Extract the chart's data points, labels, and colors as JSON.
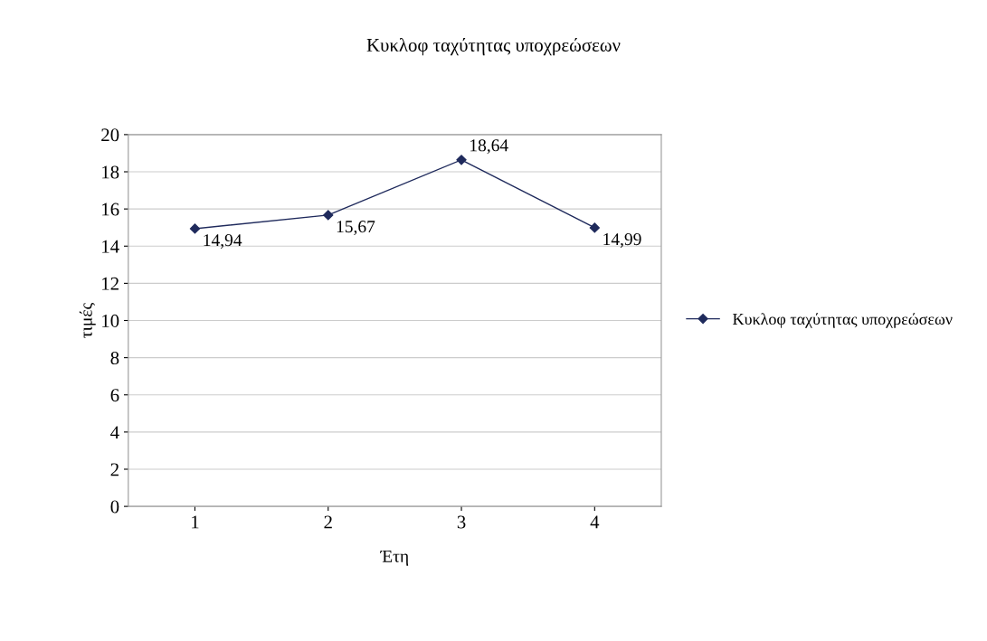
{
  "chart_data": {
    "type": "line",
    "title": "Κυκλοφ ταχύτητας υποχρεώσεων",
    "xlabel": "Έτη",
    "ylabel": "τιμές",
    "categories": [
      "1",
      "2",
      "3",
      "4"
    ],
    "series": [
      {
        "name": "Κυκλοφ ταχύτητας υποχρεώσεων",
        "color": "#1f2a5c",
        "values": [
          14.94,
          15.67,
          18.64,
          14.99
        ],
        "value_labels": [
          "14,94",
          "15,67",
          "18,64",
          "14,99"
        ]
      }
    ],
    "ylim": [
      0,
      20
    ],
    "yticks": [
      0,
      2,
      4,
      6,
      8,
      10,
      12,
      14,
      16,
      18,
      20
    ],
    "grid": "y",
    "legend": "right",
    "marker": "diamond",
    "line_style": "solid"
  }
}
